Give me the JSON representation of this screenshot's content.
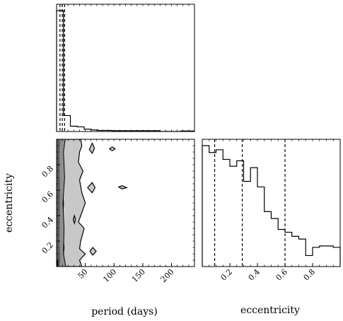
{
  "chart_data": {
    "type": "corner",
    "parameters": [
      "period (days)",
      "eccentricity"
    ],
    "period_hist": {
      "xlim": [
        0,
        240
      ],
      "bin_edges": [
        0,
        12,
        24,
        36,
        48,
        60,
        72,
        84,
        96,
        108,
        120,
        132,
        144,
        156,
        168,
        180,
        192,
        204,
        216,
        228,
        240
      ],
      "counts": [
        0.91,
        0.12,
        0.04,
        0.035,
        0.018,
        0.012,
        0.008,
        0.008,
        0.006,
        0.006,
        0.006,
        0.006,
        0.006,
        0.006,
        0.006,
        0.001,
        0.001,
        0.001,
        0.004,
        0.004
      ],
      "quantiles": [
        6,
        10,
        14
      ]
    },
    "eccentricity_hist": {
      "xlim": [
        0,
        1
      ],
      "xticks": [
        0.2,
        0.4,
        0.6,
        0.8
      ],
      "xtick_labels": [
        "0.2",
        "0.4",
        "0.6",
        "0.8"
      ],
      "bin_edges": [
        0,
        0.05,
        0.1,
        0.15,
        0.2,
        0.25,
        0.3,
        0.35,
        0.4,
        0.45,
        0.5,
        0.55,
        0.6,
        0.65,
        0.7,
        0.75,
        0.8,
        0.85,
        0.9,
        0.95,
        1.0
      ],
      "counts": [
        0.88,
        0.83,
        0.85,
        0.78,
        0.73,
        0.77,
        0.62,
        0.72,
        0.58,
        0.4,
        0.35,
        0.27,
        0.25,
        0.22,
        0.2,
        0.08,
        0.14,
        0.15,
        0.15,
        0.14
      ],
      "quantiles": [
        0.09,
        0.29,
        0.6
      ]
    },
    "joint": {
      "xlim": [
        0,
        240
      ],
      "ylim": [
        0,
        1
      ],
      "xticks": [
        50,
        100,
        150,
        200
      ],
      "xtick_labels": [
        "50",
        "100",
        "150",
        "200"
      ],
      "yticks": [
        0.2,
        0.4,
        0.6,
        0.8
      ],
      "ytick_labels": [
        "0.2",
        "0.4",
        "0.6",
        "0.8"
      ],
      "xlabel": "period (days)",
      "ylabel": "eccentricity",
      "levels": {
        "outer": [
          [
            16,
            0
          ],
          [
            12,
            0.1
          ],
          [
            13,
            0.3
          ],
          [
            11,
            0.5
          ],
          [
            14,
            0.7
          ],
          [
            12,
            0.9
          ],
          [
            15,
            1.0
          ],
          [
            0,
            1.0
          ],
          [
            0,
            0
          ]
        ],
        "mid": [
          [
            5,
            0
          ],
          [
            6,
            0.05
          ],
          [
            5,
            0.2
          ],
          [
            6,
            0.5
          ],
          [
            5,
            0.9
          ],
          [
            6,
            1.0
          ],
          [
            0,
            1.0
          ],
          [
            0,
            0
          ]
        ],
        "core": [
          [
            3,
            0
          ],
          [
            3,
            0.05
          ],
          [
            0,
            0.05
          ],
          [
            0,
            0
          ]
        ],
        "contour_main": [
          [
            44,
            0
          ],
          [
            40,
            0.05
          ],
          [
            50,
            0.1
          ],
          [
            40,
            0.14
          ],
          [
            42,
            0.2
          ],
          [
            48,
            0.3
          ],
          [
            38,
            0.35
          ],
          [
            46,
            0.45
          ],
          [
            50,
            0.5
          ],
          [
            44,
            0.58
          ],
          [
            40,
            0.68
          ],
          [
            46,
            0.75
          ],
          [
            38,
            0.82
          ],
          [
            40,
            0.9
          ],
          [
            44,
            0.95
          ],
          [
            42,
            1.0
          ],
          [
            14,
            1.0
          ],
          [
            10,
            0.9
          ],
          [
            13,
            0.8
          ],
          [
            9,
            0.7
          ],
          [
            12,
            0.5
          ],
          [
            10,
            0.3
          ],
          [
            13,
            0.15
          ],
          [
            10,
            0
          ]
        ],
        "islands": [
          [
            [
              58,
              0.12
            ],
            [
              63,
              0.09
            ],
            [
              69,
              0.12
            ],
            [
              63,
              0.15
            ]
          ],
          [
            [
              54,
              0.62
            ],
            [
              62,
              0.58
            ],
            [
              67,
              0.62
            ],
            [
              62,
              0.66
            ]
          ],
          [
            [
              57,
              0.92
            ],
            [
              62,
              0.89
            ],
            [
              66,
              0.93
            ],
            [
              62,
              0.97
            ]
          ],
          [
            [
              108,
              0.625
            ],
            [
              114,
              0.61
            ],
            [
              122,
              0.62
            ],
            [
              114,
              0.635
            ]
          ],
          [
            [
              92,
              0.925
            ],
            [
              97,
              0.91
            ],
            [
              102,
              0.925
            ],
            [
              97,
              0.94
            ]
          ],
          [
            [
              29,
              0.37
            ],
            [
              31,
              0.34
            ],
            [
              33,
              0.37
            ],
            [
              31,
              0.4
            ]
          ]
        ]
      }
    }
  }
}
